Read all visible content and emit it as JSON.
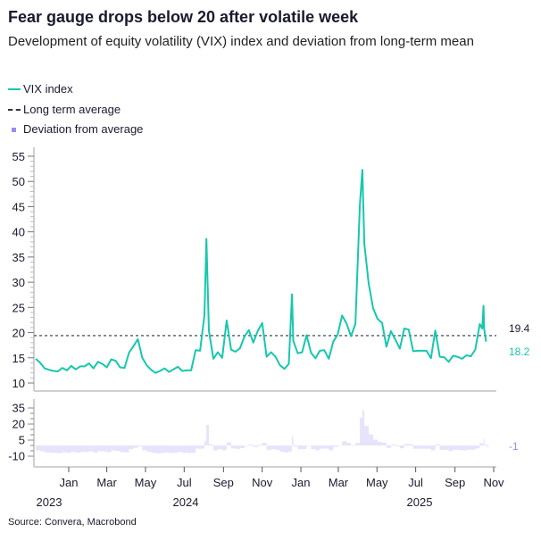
{
  "title": "Fear gauge drops below 20 after volatile week",
  "subtitle": "Development of equity volatility (VIX) index and deviation from long-term mean",
  "source": "Source: Convera, Macrobond",
  "colors": {
    "vix": "#17c7ad",
    "average": "#2b3347",
    "deviation": "#e6e3fb",
    "deviation_label": "#9a8df0"
  },
  "chart_data": [
    {
      "type": "line",
      "legend": [
        "VIX index",
        "Long term average",
        "Deviation from average"
      ],
      "legend_placement": "top-left",
      "ylim": [
        10,
        55
      ],
      "yticks": [
        10,
        15,
        20,
        25,
        30,
        35,
        40,
        45,
        50,
        55
      ],
      "long_term_average": 19.4,
      "last_value_labels": {
        "average": "19.4",
        "vix": "18.2"
      },
      "series": [
        {
          "name": "VIX index",
          "points": [
            [
              "2023-11-10",
              14.8
            ],
            [
              "2023-11-17",
              14.0
            ],
            [
              "2023-11-24",
              12.9
            ],
            [
              "2023-12-01",
              12.6
            ],
            [
              "2023-12-08",
              12.4
            ],
            [
              "2023-12-15",
              12.3
            ],
            [
              "2023-12-22",
              13.0
            ],
            [
              "2023-12-29",
              12.5
            ],
            [
              "2024-01-05",
              13.4
            ],
            [
              "2024-01-12",
              12.7
            ],
            [
              "2024-01-19",
              13.3
            ],
            [
              "2024-01-26",
              13.3
            ],
            [
              "2024-02-02",
              13.9
            ],
            [
              "2024-02-09",
              12.9
            ],
            [
              "2024-02-16",
              14.2
            ],
            [
              "2024-02-23",
              13.8
            ],
            [
              "2024-03-01",
              13.1
            ],
            [
              "2024-03-08",
              14.7
            ],
            [
              "2024-03-15",
              14.4
            ],
            [
              "2024-03-22",
              13.1
            ],
            [
              "2024-03-29",
              13.0
            ],
            [
              "2024-04-05",
              16.0
            ],
            [
              "2024-04-12",
              17.3
            ],
            [
              "2024-04-19",
              18.7
            ],
            [
              "2024-04-26",
              15.0
            ],
            [
              "2024-05-03",
              13.5
            ],
            [
              "2024-05-10",
              12.6
            ],
            [
              "2024-05-17",
              12.0
            ],
            [
              "2024-05-24",
              12.4
            ],
            [
              "2024-05-31",
              12.9
            ],
            [
              "2024-06-07",
              12.2
            ],
            [
              "2024-06-14",
              12.7
            ],
            [
              "2024-06-21",
              13.2
            ],
            [
              "2024-06-28",
              12.4
            ],
            [
              "2024-07-05",
              12.5
            ],
            [
              "2024-07-12",
              12.5
            ],
            [
              "2024-07-19",
              16.5
            ],
            [
              "2024-07-26",
              16.4
            ],
            [
              "2024-08-02",
              23.4
            ],
            [
              "2024-08-05",
              38.6
            ],
            [
              "2024-08-09",
              20.4
            ],
            [
              "2024-08-16",
              14.8
            ],
            [
              "2024-08-23",
              16.1
            ],
            [
              "2024-08-30",
              15.0
            ],
            [
              "2024-09-06",
              22.4
            ],
            [
              "2024-09-13",
              16.6
            ],
            [
              "2024-09-20",
              16.2
            ],
            [
              "2024-09-27",
              16.9
            ],
            [
              "2024-10-04",
              19.2
            ],
            [
              "2024-10-11",
              20.5
            ],
            [
              "2024-10-18",
              18.0
            ],
            [
              "2024-10-25",
              20.3
            ],
            [
              "2024-11-01",
              21.9
            ],
            [
              "2024-11-08",
              15.2
            ],
            [
              "2024-11-15",
              16.1
            ],
            [
              "2024-11-22",
              15.2
            ],
            [
              "2024-11-29",
              13.5
            ],
            [
              "2024-12-06",
              12.8
            ],
            [
              "2024-12-13",
              13.8
            ],
            [
              "2024-12-18",
              27.6
            ],
            [
              "2024-12-20",
              18.4
            ],
            [
              "2024-12-27",
              15.9
            ],
            [
              "2025-01-03",
              16.1
            ],
            [
              "2025-01-10",
              19.5
            ],
            [
              "2025-01-17",
              16.0
            ],
            [
              "2025-01-24",
              14.9
            ],
            [
              "2025-01-31",
              16.4
            ],
            [
              "2025-02-07",
              16.5
            ],
            [
              "2025-02-14",
              14.8
            ],
            [
              "2025-02-21",
              18.2
            ],
            [
              "2025-02-28",
              19.6
            ],
            [
              "2025-03-07",
              23.4
            ],
            [
              "2025-03-14",
              21.8
            ],
            [
              "2025-03-21",
              19.3
            ],
            [
              "2025-03-28",
              21.7
            ],
            [
              "2025-04-04",
              45.3
            ],
            [
              "2025-04-08",
              52.3
            ],
            [
              "2025-04-11",
              37.6
            ],
            [
              "2025-04-18",
              29.7
            ],
            [
              "2025-04-25",
              24.8
            ],
            [
              "2025-05-02",
              22.7
            ],
            [
              "2025-05-09",
              21.9
            ],
            [
              "2025-05-16",
              17.2
            ],
            [
              "2025-05-23",
              20.3
            ],
            [
              "2025-05-30",
              18.6
            ],
            [
              "2025-06-06",
              16.8
            ],
            [
              "2025-06-13",
              20.8
            ],
            [
              "2025-06-20",
              20.6
            ],
            [
              "2025-06-27",
              16.3
            ],
            [
              "2025-07-04",
              16.4
            ],
            [
              "2025-07-11",
              16.4
            ],
            [
              "2025-07-18",
              16.4
            ],
            [
              "2025-07-25",
              14.9
            ],
            [
              "2025-08-01",
              20.4
            ],
            [
              "2025-08-08",
              15.2
            ],
            [
              "2025-08-15",
              15.1
            ],
            [
              "2025-08-22",
              14.2
            ],
            [
              "2025-08-29",
              15.4
            ],
            [
              "2025-09-05",
              15.2
            ],
            [
              "2025-09-12",
              14.8
            ],
            [
              "2025-09-19",
              15.5
            ],
            [
              "2025-09-26",
              15.3
            ],
            [
              "2025-10-03",
              16.6
            ],
            [
              "2025-10-10",
              21.7
            ],
            [
              "2025-10-14",
              20.8
            ],
            [
              "2025-10-16",
              25.3
            ],
            [
              "2025-10-17",
              20.8
            ],
            [
              "2025-10-20",
              18.2
            ]
          ]
        }
      ]
    },
    {
      "type": "bar",
      "name": "Deviation from average",
      "ylim": [
        -14,
        37
      ],
      "yticks": [
        -10,
        5,
        20,
        35
      ],
      "last_value_label": "-1",
      "derived_from": "VIX index minus long term average"
    }
  ],
  "x_axis": {
    "months": [
      [
        "2024-01-01",
        "Jan"
      ],
      [
        "2024-03-01",
        "Mar"
      ],
      [
        "2024-05-01",
        "May"
      ],
      [
        "2024-07-01",
        "Jul"
      ],
      [
        "2024-09-01",
        "Sep"
      ],
      [
        "2024-11-01",
        "Nov"
      ],
      [
        "2025-01-01",
        "Jan"
      ],
      [
        "2025-03-01",
        "Mar"
      ],
      [
        "2025-05-01",
        "May"
      ],
      [
        "2025-07-01",
        "Jul"
      ],
      [
        "2025-09-01",
        "Sep"
      ],
      [
        "2025-11-01",
        "Nov"
      ]
    ],
    "years": [
      "2023",
      "2024",
      "2025"
    ]
  }
}
